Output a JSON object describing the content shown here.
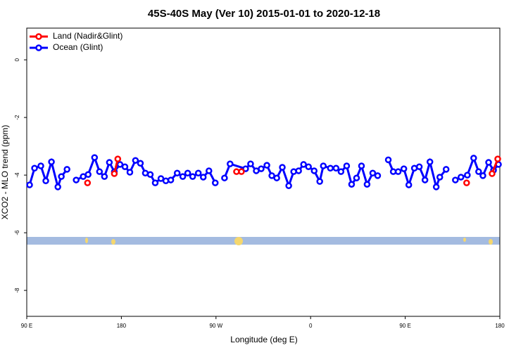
{
  "chart_data": {
    "type": "line",
    "title": "45S-40S May (Ver 10)   2015-01-01 to 2020-12-18",
    "xlabel": "Longitude (deg E)",
    "ylabel": "XCO2 - MLO trend (ppm)",
    "xlim": [
      90,
      540
    ],
    "ylim": [
      -8.9,
      1.1
    ],
    "xticks": [
      {
        "value": 90,
        "label": "90 E"
      },
      180,
      {
        "value": 270,
        "label": "90 W"
      },
      {
        "value": 360,
        "label": "0"
      },
      {
        "value": 450,
        "label": "90 E"
      },
      {
        "value": 540,
        "label": "180"
      }
    ],
    "yticks": [
      -8,
      -6,
      -4,
      -2,
      0
    ],
    "legend": "top-left",
    "series": [
      {
        "name": "Land (Nadir&Glint)",
        "color": "#ff0000",
        "x": [
          147.8,
          160,
          173.3,
          176.6,
          230,
          289.5,
          294.2,
          400,
          508.4,
          520,
          532.6,
          538.0
        ],
        "values": [
          -4.27,
          null,
          -3.95,
          -3.44,
          null,
          -3.88,
          -3.88,
          null,
          -4.27,
          null,
          -3.95,
          -3.44
        ]
      },
      {
        "name": "Ocean (Glint)",
        "color": "#0000ff",
        "x": [
          92.7,
          97.4,
          103.4,
          108.1,
          113.5,
          119.6,
          122.9,
          128.3,
          134,
          137.0,
          143.7,
          148.4,
          154.5,
          159.2,
          163.9,
          168.6,
          173.3,
          178.7,
          183.4,
          188.1,
          193.4,
          198.1,
          202.8,
          207.5,
          212.2,
          217.6,
          222.3,
          227.0,
          233.1,
          238.4,
          243.1,
          247.8,
          253.2,
          257.9,
          263.3,
          269.3,
          273,
          278.1,
          283.4,
          298.2,
          302.9,
          308.3,
          313.0,
          318.4,
          323.1,
          327.8,
          333.1,
          339.2,
          343.9,
          348.6,
          353.3,
          358.0,
          363.4,
          368.7,
          372.1,
          378.8,
          384.2,
          388.9,
          394.3,
          399.0,
          403.7,
          408.4,
          413.7,
          419.1,
          423.8,
          428,
          433.9,
          438.6,
          443.3,
          448.7,
          453.4,
          458.7,
          463.4,
          468.8,
          473.5,
          479.5,
          482.9,
          488.9,
          493,
          497.7,
          503.0,
          509.1,
          515.1,
          519.8,
          523.9,
          529.3,
          534.0,
          538.7
        ],
        "values": [
          -4.34,
          -3.76,
          -3.68,
          -4.2,
          -3.54,
          -4.41,
          -4.05,
          -3.8,
          null,
          -4.17,
          -4.05,
          -3.98,
          -3.39,
          -3.88,
          -4.05,
          -3.56,
          -3.88,
          -3.63,
          -3.71,
          -3.9,
          -3.49,
          -3.59,
          -3.93,
          -3.98,
          -4.27,
          -4.12,
          -4.2,
          -4.17,
          -3.93,
          -4.05,
          -3.93,
          -4.05,
          -3.93,
          -4.07,
          -3.85,
          -4.27,
          null,
          -4.1,
          -3.61,
          -3.78,
          -3.61,
          -3.85,
          -3.78,
          -3.66,
          -4.02,
          -4.1,
          -3.73,
          -4.37,
          -3.88,
          -3.85,
          -3.63,
          -3.71,
          -3.85,
          -4.22,
          -3.68,
          -3.76,
          -3.76,
          -3.88,
          -3.68,
          -4.32,
          -4.1,
          -3.68,
          -4.32,
          -3.93,
          -4.02,
          null,
          -3.47,
          -3.88,
          -3.88,
          -3.78,
          -4.34,
          -3.76,
          -3.71,
          -4.17,
          -3.54,
          -4.41,
          -4.07,
          -3.8,
          null,
          -4.17,
          -4.07,
          -4.0,
          -3.41,
          -3.88,
          -4.02,
          -3.56,
          -3.83,
          -3.63
        ]
      }
    ]
  }
}
